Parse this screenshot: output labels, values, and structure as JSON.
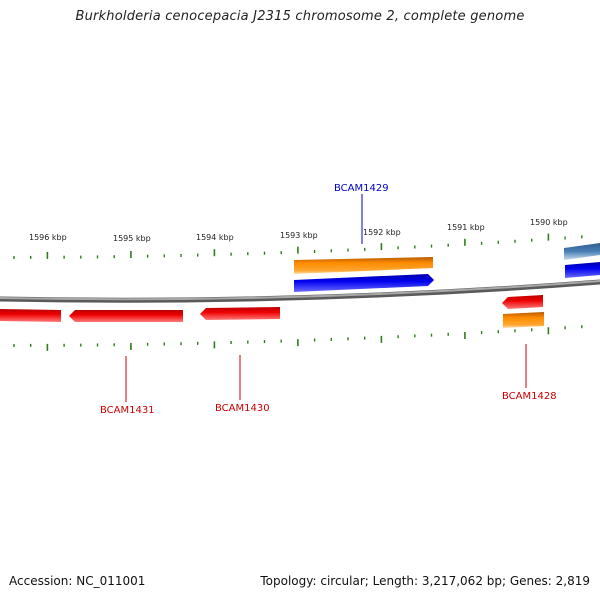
{
  "title": "Burkholderia cenocepacia J2315 chromosome 2, complete genome",
  "footer": {
    "accession": "Accession: NC_011001",
    "summary": "Topology: circular; Length: 3,217,062 bp; Genes: 2,819"
  },
  "colors": {
    "forward_gene": "#0000ee",
    "forward_cds": "#ff8c00",
    "reverse_gene": "#ee0000",
    "reverse_cds": "#ff8c00",
    "other_gene": "#4a7fb5",
    "backbone": "#888888",
    "tick": "#2e7d1a",
    "forward_label": "#0000cc",
    "reverse_label": "#cc0000"
  },
  "ruler_labels": [
    "1596 kbp",
    "1595 kbp",
    "1594 kbp",
    "1593 kbp",
    "1592 kbp",
    "1591 kbp",
    "1590 kbp"
  ],
  "gene_labels": [
    {
      "name": "BCAM1429",
      "strand": "forward"
    },
    {
      "name": "BCAM1431",
      "strand": "reverse"
    },
    {
      "name": "BCAM1430",
      "strand": "reverse"
    },
    {
      "name": "BCAM1428",
      "strand": "reverse"
    }
  ]
}
